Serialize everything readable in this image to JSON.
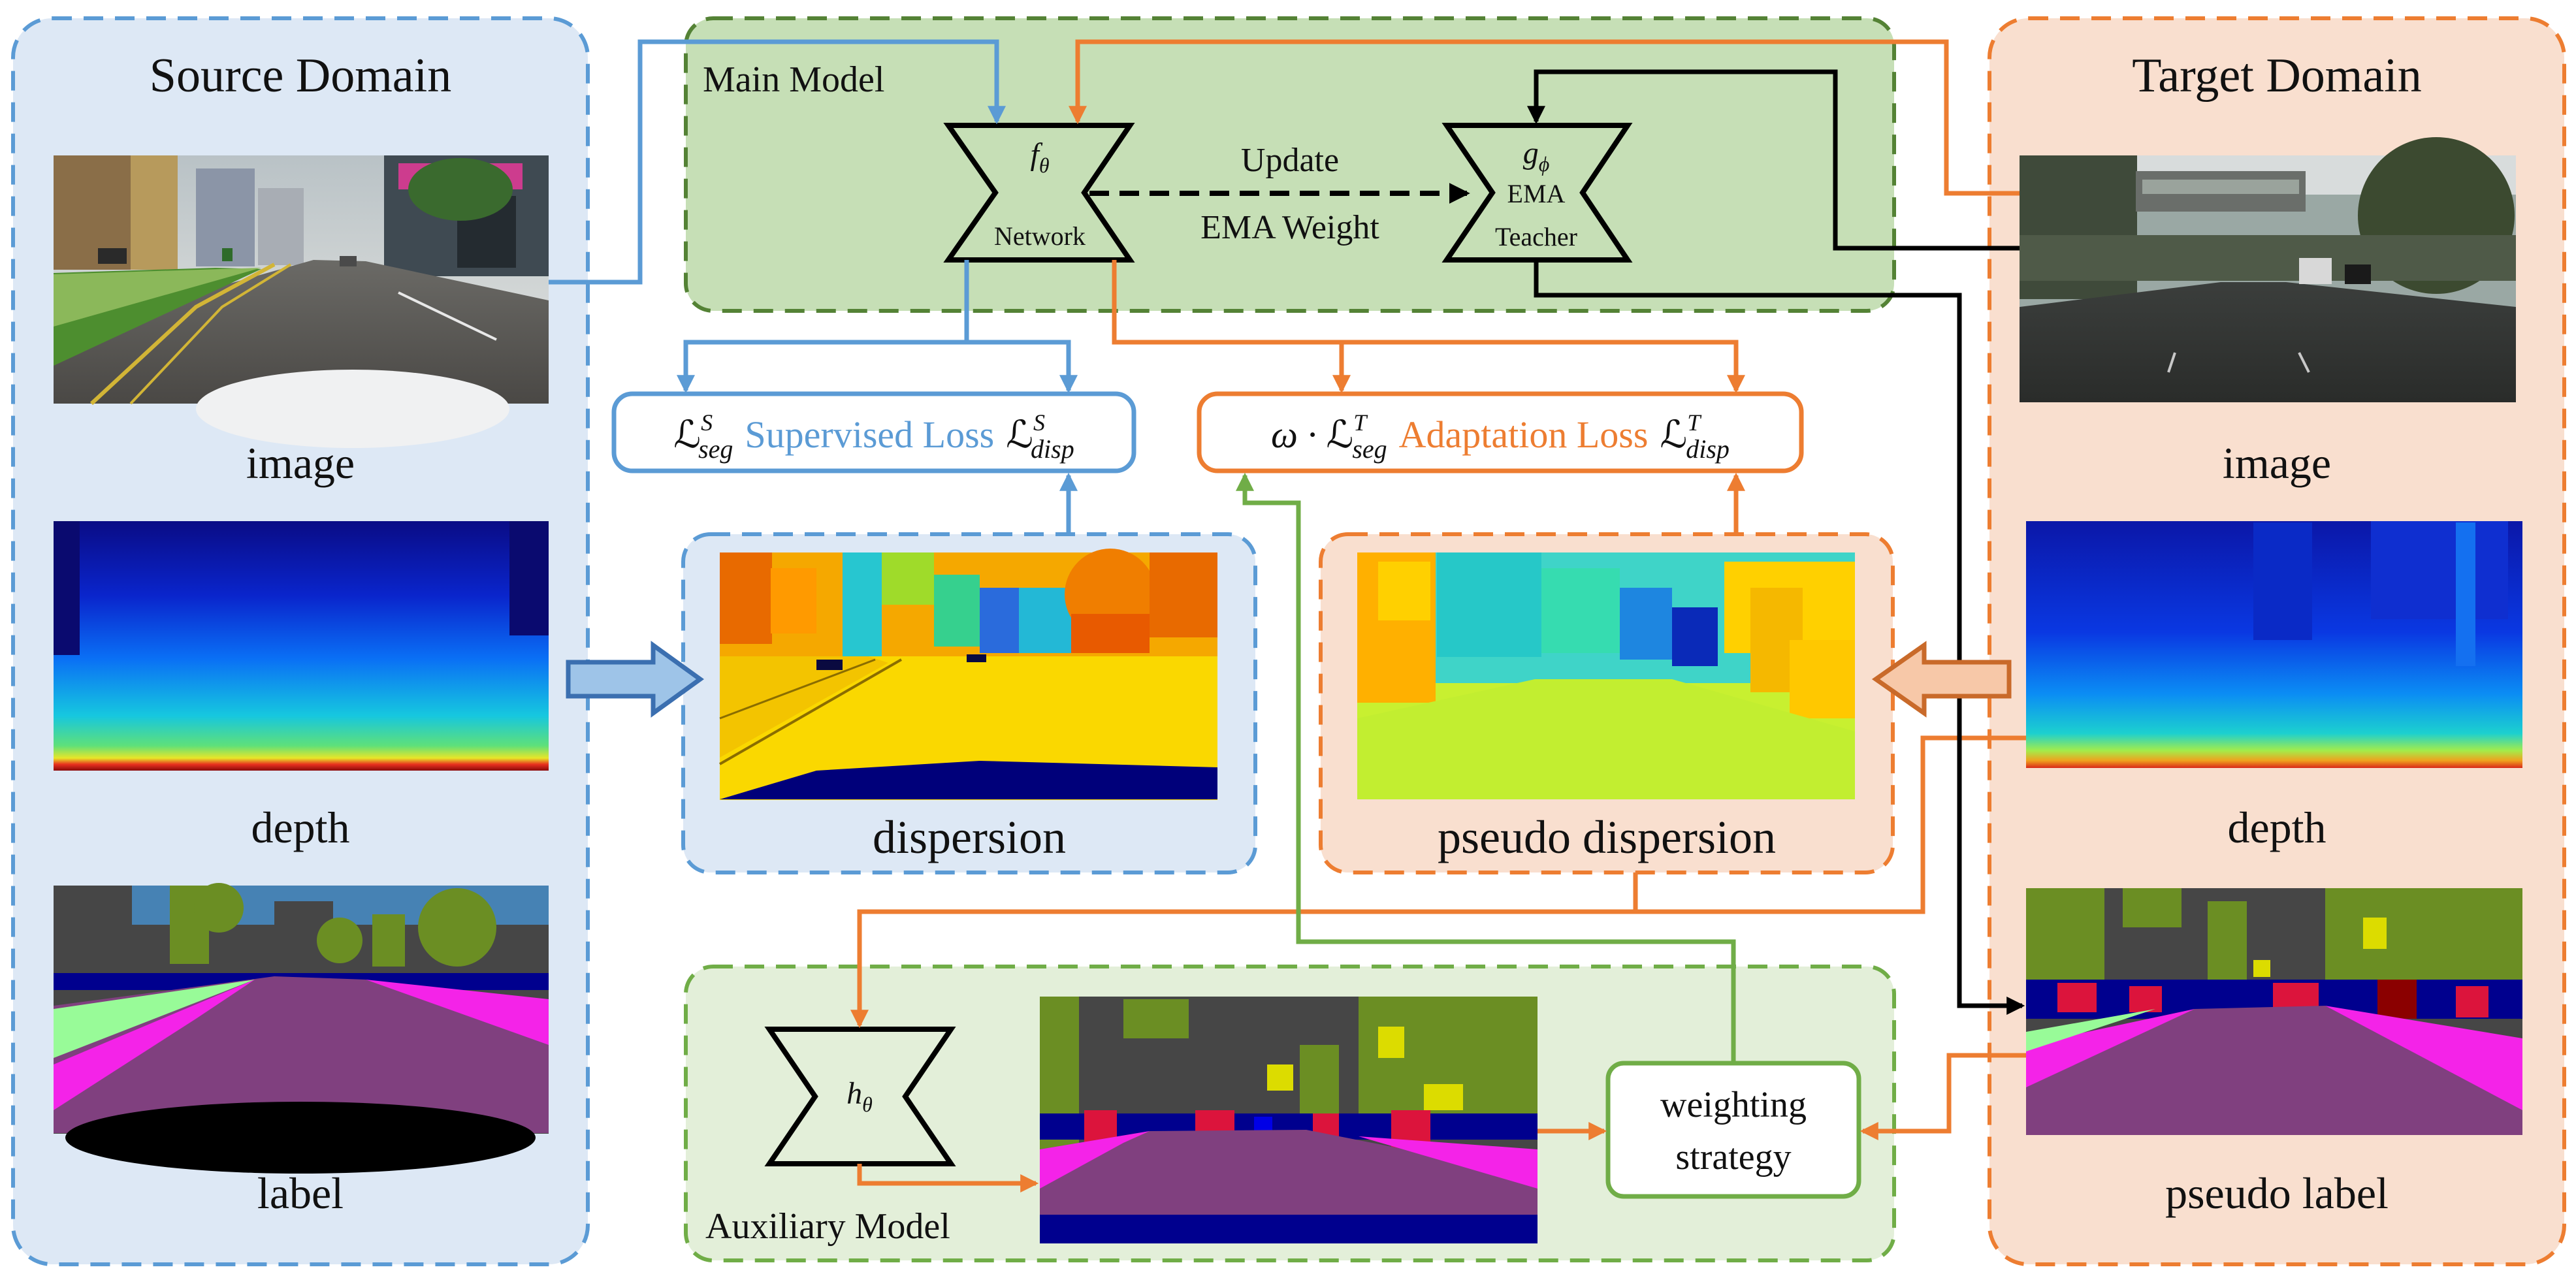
{
  "colors": {
    "source_panel_fill": "#dde8f5",
    "source_border": "#5b9bd5",
    "main_model_fill": "#c6dfb6",
    "main_border": "#548235",
    "target_panel_fill": "#f9dfcf",
    "target_border": "#ed7d31",
    "aux_fill": "#e3efd9",
    "aux_border": "#70ad47",
    "blue_arrow": "#5b9bd5",
    "orange_arrow": "#ed7d31",
    "green_arrow": "#70ad47",
    "black_arrow": "#000000"
  },
  "source": {
    "title": "Source Domain",
    "image_caption": "image",
    "depth_caption": "depth",
    "label_caption": "label"
  },
  "target": {
    "title": "Target Domain",
    "image_caption": "image",
    "depth_caption": "depth",
    "label_caption": "pseudo label"
  },
  "main_model": {
    "title": "Main Model",
    "student_symbol": "f",
    "student_sub": "θ",
    "student_name": "Network",
    "teacher_symbol": "g",
    "teacher_sub": "ϕ",
    "teacher_line1": "EMA",
    "teacher_line2": "Teacher",
    "update_label": "Update",
    "ema_weight_label": "EMA Weight"
  },
  "supervised_loss": {
    "seg_symbol": "ℒ",
    "seg_sup": "S",
    "seg_sub": "seg",
    "text": "Supervised Loss",
    "disp_symbol": "ℒ",
    "disp_sup": "S",
    "disp_sub": "disp"
  },
  "adaptation_loss": {
    "weight_prefix": "ω · ",
    "seg_symbol": "ℒ",
    "seg_sup": "T",
    "seg_sub": "seg",
    "text": "Adaptation Loss",
    "disp_symbol": "ℒ",
    "disp_sup": "T",
    "disp_sub": "disp"
  },
  "dispersion": {
    "caption": "dispersion"
  },
  "pseudo_dispersion": {
    "caption": "pseudo dispersion"
  },
  "auxiliary": {
    "title": "Auxiliary Model",
    "symbol": "h",
    "sub": "θ",
    "strategy_line1": "weighting",
    "strategy_line2": "strategy"
  }
}
